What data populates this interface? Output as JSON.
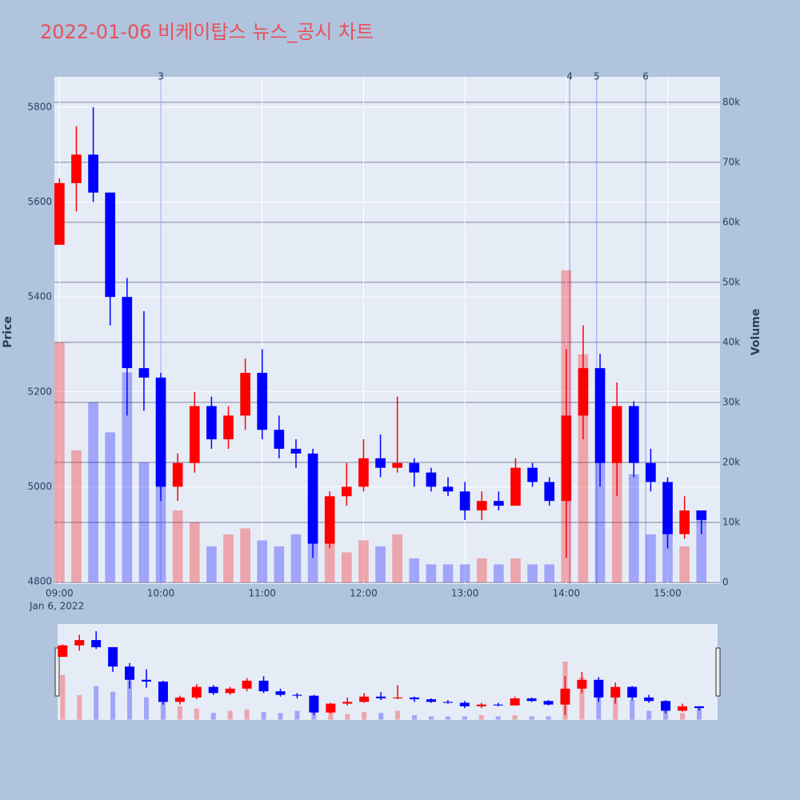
{
  "chart_data": {
    "type": "candlestick",
    "title": "2022-01-06 비케이탑스 뉴스_공시 차트",
    "y_label": "Price",
    "y2_label": "Volume",
    "x_date_label": "Jan 6, 2022",
    "increasing_color": "#ff0000",
    "decreasing_color": "#0000ff",
    "x": [
      "09:00",
      "09:10",
      "09:20",
      "09:30",
      "09:40",
      "09:50",
      "10:00",
      "10:10",
      "10:20",
      "10:30",
      "10:40",
      "10:50",
      "11:00",
      "11:10",
      "11:20",
      "11:30",
      "11:40",
      "11:50",
      "12:00",
      "12:10",
      "12:20",
      "12:30",
      "12:40",
      "12:50",
      "13:00",
      "13:10",
      "13:20",
      "13:30",
      "13:40",
      "13:50",
      "14:00",
      "14:10",
      "14:20",
      "14:30",
      "14:40",
      "14:50",
      "15:00",
      "15:10",
      "15:20"
    ],
    "open": [
      5510,
      5640,
      5700,
      5620,
      5400,
      5250,
      5230,
      5000,
      5050,
      5170,
      5100,
      5150,
      5240,
      5120,
      5080,
      5070,
      4880,
      4980,
      5000,
      5060,
      5040,
      5050,
      5030,
      5000,
      4990,
      4950,
      4970,
      4960,
      5040,
      5010,
      4970,
      5150,
      5250,
      5050,
      5170,
      5050,
      5010,
      4900,
      4950
    ],
    "high": [
      5650,
      5760,
      5800,
      5620,
      5440,
      5370,
      5240,
      5070,
      5200,
      5190,
      5170,
      5270,
      5290,
      5150,
      5100,
      5080,
      4990,
      5050,
      5100,
      5110,
      5190,
      5060,
      5040,
      5020,
      5010,
      4990,
      4990,
      5060,
      5050,
      5020,
      5290,
      5340,
      5280,
      5220,
      5180,
      5080,
      5020,
      4980,
      4950
    ],
    "low": [
      5510,
      5580,
      5600,
      5340,
      5150,
      5160,
      4970,
      4970,
      5030,
      5080,
      5080,
      5120,
      5100,
      5060,
      5040,
      4850,
      4870,
      4960,
      4990,
      5020,
      5030,
      5000,
      4990,
      4980,
      4930,
      4930,
      4950,
      4960,
      5000,
      4960,
      4850,
      5100,
      5000,
      4980,
      5020,
      4990,
      4870,
      4890,
      4900
    ],
    "close": [
      5640,
      5700,
      5620,
      5400,
      5250,
      5230,
      5000,
      5050,
      5170,
      5100,
      5150,
      5240,
      5120,
      5080,
      5070,
      4880,
      4980,
      5000,
      5060,
      5040,
      5050,
      5030,
      5000,
      4990,
      4950,
      4970,
      4960,
      5040,
      5010,
      4970,
      5150,
      5250,
      5050,
      5170,
      5050,
      5010,
      4900,
      4950,
      4930
    ],
    "volume": [
      40000,
      22000,
      30000,
      25000,
      35000,
      20000,
      28000,
      12000,
      10000,
      6000,
      8000,
      9000,
      7000,
      6000,
      8000,
      14000,
      9000,
      5000,
      7000,
      6000,
      8000,
      4000,
      3000,
      3000,
      3000,
      4000,
      3000,
      4000,
      3000,
      3000,
      52000,
      38000,
      30000,
      20000,
      18000,
      8000,
      9000,
      6000,
      12000
    ],
    "xlim": [
      "08:57",
      "15:31"
    ],
    "ylim": [
      4795,
      5864
    ],
    "yticks": [
      4800,
      5000,
      5200,
      5400,
      5600,
      5800
    ],
    "y2lim": [
      -270,
      84250
    ],
    "y2ticks": [
      0,
      {
        "value": 10000,
        "label": "10k"
      },
      {
        "value": 20000,
        "label": "20k"
      },
      {
        "value": 30000,
        "label": "30k"
      },
      {
        "value": 40000,
        "label": "40k"
      },
      {
        "value": 50000,
        "label": "50k"
      },
      {
        "value": 60000,
        "label": "60k"
      },
      {
        "value": 70000,
        "label": "70k"
      },
      {
        "value": 80000,
        "label": "80k"
      }
    ],
    "xticks": [
      "09:00",
      "10:00",
      "11:00",
      "12:00",
      "13:00",
      "14:00",
      "15:00"
    ],
    "annotations": [
      {
        "x": "10:00",
        "text": "3"
      },
      {
        "x": "14:02",
        "text": "4"
      },
      {
        "x": "14:18",
        "text": "5"
      },
      {
        "x": "14:47",
        "text": "6"
      }
    ]
  }
}
